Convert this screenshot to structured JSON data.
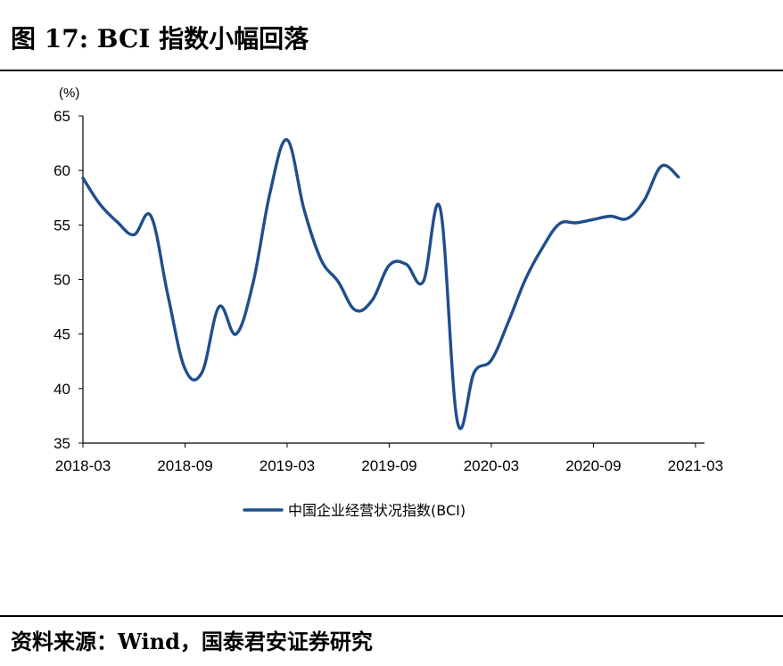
{
  "figure": {
    "title": "图 17: BCI 指数小幅回落",
    "source": "资料来源：Wind，国泰君安证券研究"
  },
  "chart_data": {
    "type": "line",
    "unit_label": "(%)",
    "ylim": [
      35,
      65
    ],
    "yticks": [
      35,
      40,
      45,
      50,
      55,
      60,
      65
    ],
    "xtick_labels": [
      "2018-03",
      "2018-09",
      "2019-03",
      "2019-09",
      "2020-03",
      "2020-09",
      "2021-03"
    ],
    "x": [
      "2018-03",
      "2018-04",
      "2018-05",
      "2018-06",
      "2018-07",
      "2018-08",
      "2018-09",
      "2018-10",
      "2018-11",
      "2018-12",
      "2019-01",
      "2019-02",
      "2019-03",
      "2019-04",
      "2019-05",
      "2019-06",
      "2019-07",
      "2019-08",
      "2019-09",
      "2019-10",
      "2019-11",
      "2019-12",
      "2020-01",
      "2020-02",
      "2020-03",
      "2020-04",
      "2020-05",
      "2020-06",
      "2020-07",
      "2020-08",
      "2020-09",
      "2020-10",
      "2020-11",
      "2020-12",
      "2021-01",
      "2021-02",
      "2021-03"
    ],
    "series": [
      {
        "name": "中国企业经营状况指数(BCI)",
        "color": "#1f4e8c",
        "values": [
          59.3,
          56.9,
          55.3,
          54.1,
          55.8,
          48.5,
          41.8,
          41.5,
          47.5,
          45.0,
          49.7,
          58.0,
          62.8,
          56.4,
          51.8,
          49.8,
          47.2,
          48.1,
          51.3,
          51.4,
          49.8,
          56.5,
          37.0,
          41.5,
          42.6,
          46.1,
          50.0,
          52.9,
          55.1,
          55.2,
          55.5,
          55.8,
          55.6,
          57.3,
          60.4,
          59.4,
          null
        ]
      }
    ],
    "legend_position": "bottom",
    "grid": false
  }
}
